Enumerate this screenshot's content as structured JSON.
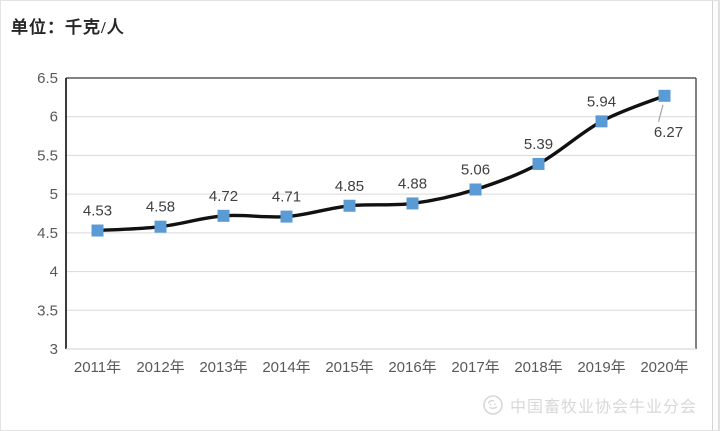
{
  "page": {
    "unit_title": "单位：千克/人"
  },
  "watermark": {
    "icon": "association-logo",
    "text": "中国畜牧业协会牛业分会"
  },
  "colors": {
    "line": "#111111",
    "marker": "#5b9bd5",
    "grid": "#d9d9d9",
    "plot_border_dark": "#595959",
    "axis_line": "#262626",
    "plot_border_bottom": "#d9d9d9",
    "tick_text": "#595959",
    "data_label_text": "#404040",
    "leader_line": "#a6a6a6",
    "watermark_text": "#d8d8d8"
  },
  "chart_data": {
    "type": "line",
    "title": "单位：千克/人",
    "categories": [
      "2011年",
      "2012年",
      "2013年",
      "2014年",
      "2015年",
      "2016年",
      "2017年",
      "2018年",
      "2019年",
      "2020年"
    ],
    "values": [
      4.53,
      4.58,
      4.72,
      4.71,
      4.85,
      4.88,
      5.06,
      5.39,
      5.94,
      6.27
    ],
    "data_labels": [
      "4.53",
      "4.58",
      "4.72",
      "4.71",
      "4.85",
      "4.88",
      "5.06",
      "5.39",
      "5.94",
      "6.27"
    ],
    "ylim": [
      3,
      6.5
    ],
    "ytick_step": 0.5,
    "ytick_labels": [
      "6.5",
      "6",
      "5.5",
      "5",
      "4.5",
      "4",
      "3.5",
      "3"
    ],
    "xlabel": "",
    "ylabel": "",
    "grid": "horizontal",
    "legend": "none",
    "marker": "square",
    "line_smooth": true,
    "label_positions": [
      "above",
      "above",
      "above",
      "above",
      "above",
      "above",
      "above",
      "above",
      "above",
      "below-with-leader"
    ]
  }
}
